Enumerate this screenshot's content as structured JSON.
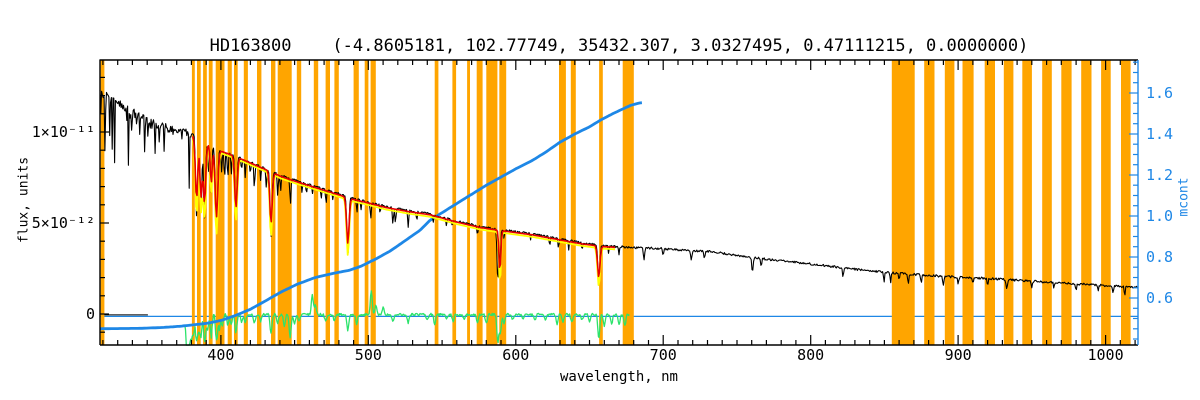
{
  "colors": {
    "background": "#ffffff",
    "frame": "#000000",
    "masked_band_orange": "#FFA500",
    "mcont_blue": "#1E87E6",
    "residual_green": "#2BE36B",
    "fit_red": "#E80000",
    "fit_yellow": "#FFFF00",
    "spectrum_black": "#000000"
  },
  "chart_data": {
    "type": "line",
    "title": "HD163800    (-4.8605181, 102.77749, 35432.307, 3.0327495, 0.47111215, 0.0000000)",
    "xlabel": "wavelength, nm",
    "ylabel_left": "flux, units",
    "ylabel_right": "mcont",
    "x_range_nm": [
      318,
      1022
    ],
    "x_major_ticks": [
      400,
      500,
      600,
      700,
      800,
      900,
      1000
    ],
    "x_minor_step_nm": 10,
    "flux_axis": {
      "range_e12": [
        -1.7,
        13.96
      ],
      "major_ticks": [
        {
          "value_e12": 0,
          "label": "0"
        },
        {
          "value_e12": 5,
          "label": "5×10⁻¹²"
        },
        {
          "value_e12": 10,
          "label": "1×10⁻¹¹"
        }
      ],
      "minor_step_e12": 1
    },
    "mcont_axis": {
      "range": [
        0.371,
        1.761
      ],
      "major_ticks": [
        0.6,
        0.8,
        1.0,
        1.2,
        1.4,
        1.6
      ],
      "minor_step": 0.05
    },
    "masked_bands_nm": [
      [
        318.5,
        321
      ],
      [
        380.3,
        382.3
      ],
      [
        383.8,
        386.3
      ],
      [
        387.9,
        390.4
      ],
      [
        391.8,
        394.4
      ],
      [
        396.5,
        402.5
      ],
      [
        404.6,
        407.4
      ],
      [
        408.9,
        411.4
      ],
      [
        415.5,
        418.3
      ],
      [
        424.5,
        427.5
      ],
      [
        434,
        437
      ],
      [
        438.5,
        448
      ],
      [
        451.5,
        454.5
      ],
      [
        463,
        466
      ],
      [
        471,
        474
      ],
      [
        477,
        480
      ],
      [
        490,
        493.5
      ],
      [
        497.5,
        500
      ],
      [
        501.5,
        505
      ],
      [
        545,
        547.5
      ],
      [
        557,
        559.5
      ],
      [
        567,
        569
      ],
      [
        573.5,
        577.5
      ],
      [
        580,
        587.5
      ],
      [
        588.8,
        593.5
      ],
      [
        629.3,
        634
      ],
      [
        637.3,
        640.7
      ],
      [
        656.5,
        659
      ],
      [
        672.5,
        680
      ],
      [
        855,
        870.5
      ],
      [
        877,
        884
      ],
      [
        891,
        897.5
      ],
      [
        903,
        910.5
      ],
      [
        918,
        925
      ],
      [
        931,
        937.5
      ],
      [
        943.5,
        950
      ],
      [
        957,
        963.5
      ],
      [
        970,
        977
      ],
      [
        983.5,
        990.5
      ],
      [
        997,
        1003.5
      ],
      [
        1010.5,
        1017
      ]
    ],
    "spectrum_continuum_e12": [
      [
        318,
        12.3
      ],
      [
        325,
        11.9
      ],
      [
        332,
        11.5
      ],
      [
        340,
        11.1
      ],
      [
        348,
        10.75
      ],
      [
        356,
        10.45
      ],
      [
        364,
        10.2
      ],
      [
        372,
        10.0
      ],
      [
        379,
        9.9
      ],
      [
        381,
        9.85
      ],
      [
        390,
        9.4
      ],
      [
        400,
        9.0
      ],
      [
        410,
        8.7
      ],
      [
        420,
        8.35
      ],
      [
        430,
        8.0
      ],
      [
        441,
        7.6
      ],
      [
        450,
        7.35
      ],
      [
        460,
        7.1
      ],
      [
        470,
        6.85
      ],
      [
        480,
        6.6
      ],
      [
        487,
        6.4
      ],
      [
        500,
        6.15
      ],
      [
        512,
        5.9
      ],
      [
        527,
        5.68
      ],
      [
        542,
        5.5
      ],
      [
        560,
        5.1
      ],
      [
        576,
        4.8
      ],
      [
        593,
        4.6
      ],
      [
        611,
        4.4
      ],
      [
        628,
        4.15
      ],
      [
        645,
        3.9
      ],
      [
        660,
        3.75
      ],
      [
        680,
        3.65
      ],
      [
        698,
        3.6
      ],
      [
        715,
        3.5
      ],
      [
        730,
        3.45
      ],
      [
        748,
        3.25
      ],
      [
        766,
        3.05
      ],
      [
        782,
        2.9
      ],
      [
        800,
        2.75
      ],
      [
        818,
        2.58
      ],
      [
        835,
        2.42
      ],
      [
        853,
        2.28
      ],
      [
        870,
        2.18
      ],
      [
        885,
        2.1
      ],
      [
        900,
        2.02
      ],
      [
        915,
        1.97
      ],
      [
        927,
        1.92
      ],
      [
        940,
        1.85
      ],
      [
        955,
        1.78
      ],
      [
        972,
        1.7
      ],
      [
        985,
        1.64
      ],
      [
        1000,
        1.56
      ],
      [
        1010,
        1.52
      ],
      [
        1022,
        1.46
      ]
    ],
    "absorption_lines": [
      [
        383.5,
        4.3,
        0.9
      ],
      [
        385.0,
        2.0,
        0.6
      ],
      [
        386.5,
        3.9,
        0.8
      ],
      [
        388.9,
        4.2,
        0.9
      ],
      [
        391.5,
        1.8,
        0.5
      ],
      [
        393.4,
        2.6,
        0.7
      ],
      [
        397.0,
        4.8,
        1.0
      ],
      [
        400.5,
        1.2,
        0.5
      ],
      [
        402.5,
        1.5,
        0.5
      ],
      [
        404.7,
        1.4,
        0.5
      ],
      [
        407.0,
        1.1,
        0.4
      ],
      [
        410.2,
        3.6,
        0.9
      ],
      [
        414.0,
        0.8,
        0.4
      ],
      [
        416.5,
        1.0,
        0.4
      ],
      [
        420.0,
        0.7,
        0.4
      ],
      [
        422.7,
        1.4,
        0.5
      ],
      [
        427.0,
        0.8,
        0.4
      ],
      [
        430.8,
        1.0,
        0.5
      ],
      [
        434.0,
        3.6,
        0.9
      ],
      [
        438.5,
        1.2,
        0.5
      ],
      [
        440.5,
        1.0,
        0.4
      ],
      [
        447.1,
        1.5,
        0.5
      ],
      [
        455.0,
        0.6,
        0.4
      ],
      [
        458.0,
        0.7,
        0.4
      ],
      [
        462.0,
        0.5,
        0.4
      ],
      [
        468.0,
        0.6,
        0.4
      ],
      [
        471.3,
        0.8,
        0.4
      ],
      [
        476.0,
        0.5,
        0.4
      ],
      [
        486.1,
        3.2,
        0.9
      ],
      [
        492.2,
        0.8,
        0.4
      ],
      [
        495.0,
        0.6,
        0.4
      ],
      [
        501.6,
        0.9,
        0.5
      ],
      [
        508.0,
        0.5,
        0.4
      ],
      [
        516.7,
        0.9,
        0.5
      ],
      [
        518.4,
        0.8,
        0.5
      ],
      [
        527.0,
        0.9,
        0.5
      ],
      [
        532.8,
        0.5,
        0.4
      ],
      [
        544.0,
        0.4,
        0.4
      ],
      [
        553.0,
        0.5,
        0.4
      ],
      [
        557.0,
        0.4,
        0.4
      ],
      [
        574.0,
        0.5,
        0.4
      ],
      [
        587.8,
        2.9,
        0.7
      ],
      [
        589.3,
        2.0,
        0.6
      ],
      [
        592.0,
        0.5,
        0.4
      ],
      [
        610.0,
        0.4,
        0.4
      ],
      [
        623.0,
        0.5,
        0.4
      ],
      [
        629.0,
        0.6,
        0.4
      ],
      [
        636.0,
        0.5,
        0.4
      ],
      [
        645.0,
        0.4,
        0.4
      ],
      [
        656.3,
        2.2,
        0.9
      ],
      [
        663.0,
        0.5,
        0.4
      ],
      [
        670.0,
        0.4,
        0.4
      ],
      [
        687.0,
        0.7,
        0.6
      ],
      [
        700.0,
        0.4,
        0.5
      ],
      [
        719.0,
        0.5,
        0.6
      ],
      [
        728.0,
        0.4,
        0.5
      ],
      [
        760.5,
        0.8,
        0.7
      ],
      [
        766.5,
        0.5,
        0.5
      ],
      [
        822.0,
        0.5,
        0.5
      ],
      [
        849.8,
        0.5,
        0.5
      ],
      [
        854.2,
        0.6,
        0.5
      ],
      [
        860.0,
        0.4,
        0.5
      ],
      [
        866.2,
        0.5,
        0.5
      ],
      [
        875.0,
        0.4,
        0.5
      ],
      [
        890.0,
        0.5,
        0.6
      ],
      [
        900.0,
        0.4,
        0.5
      ],
      [
        910.0,
        0.3,
        0.5
      ],
      [
        920.0,
        0.4,
        0.5
      ],
      [
        933.0,
        0.5,
        0.6
      ],
      [
        950.0,
        0.4,
        0.5
      ],
      [
        965.0,
        0.3,
        0.5
      ],
      [
        980.0,
        0.4,
        0.5
      ],
      [
        995.0,
        0.3,
        0.5
      ],
      [
        1005.0,
        0.4,
        0.5
      ],
      [
        1013.0,
        0.5,
        0.5
      ]
    ],
    "fit_range_nm": [
      381,
      668
    ],
    "fit_dips": [
      [
        383.5,
        4.3,
        0.9
      ],
      [
        386.5,
        3.9,
        0.8
      ],
      [
        388.9,
        4.2,
        0.9
      ],
      [
        393.4,
        2.6,
        0.7
      ],
      [
        397.0,
        4.8,
        1.0
      ],
      [
        410.2,
        3.6,
        0.9
      ],
      [
        434.0,
        3.6,
        0.9
      ],
      [
        486.1,
        3.2,
        0.9
      ],
      [
        589.2,
        2.9,
        0.7
      ],
      [
        656.3,
        2.2,
        0.9
      ]
    ],
    "mcont_curve": [
      [
        318,
        0.45
      ],
      [
        345,
        0.452
      ],
      [
        360,
        0.456
      ],
      [
        372,
        0.462
      ],
      [
        380,
        0.468
      ],
      [
        390,
        0.476
      ],
      [
        400,
        0.49
      ],
      [
        410,
        0.515
      ],
      [
        420,
        0.545
      ],
      [
        430,
        0.585
      ],
      [
        441,
        0.63
      ],
      [
        452,
        0.668
      ],
      [
        464,
        0.7
      ],
      [
        476,
        0.72
      ],
      [
        487,
        0.735
      ],
      [
        495,
        0.755
      ],
      [
        505,
        0.79
      ],
      [
        515,
        0.83
      ],
      [
        525,
        0.88
      ],
      [
        535,
        0.93
      ],
      [
        542,
        0.98
      ],
      [
        552,
        1.025
      ],
      [
        562,
        1.07
      ],
      [
        571,
        1.11
      ],
      [
        580,
        1.15
      ],
      [
        590,
        1.19
      ],
      [
        600,
        1.23
      ],
      [
        611,
        1.27
      ],
      [
        620,
        1.31
      ],
      [
        630,
        1.36
      ],
      [
        640,
        1.4
      ],
      [
        650,
        1.435
      ],
      [
        658,
        1.47
      ],
      [
        666,
        1.5
      ],
      [
        672,
        1.52
      ],
      [
        678,
        1.54
      ],
      [
        683,
        1.55
      ],
      [
        686,
        1.553
      ]
    ],
    "zero_line_mcont": 0.51,
    "zero_segment_black_nm": [
      320,
      350.5
    ],
    "residual_range_nm": [
      375.5,
      677
    ],
    "residual_spikes_e12": [
      [
        376.5,
        -1.3
      ],
      [
        377.5,
        -1.8
      ],
      [
        378.5,
        -1.5
      ],
      [
        380,
        -1.2
      ],
      [
        381.5,
        -1.0
      ],
      [
        383.5,
        -1.5
      ],
      [
        385,
        -0.9
      ],
      [
        386.5,
        -1.2
      ],
      [
        389,
        -1.6
      ],
      [
        391,
        -0.8
      ],
      [
        393.4,
        -1.2
      ],
      [
        397,
        -1.5
      ],
      [
        399,
        -0.8
      ],
      [
        401,
        -0.6
      ],
      [
        404.7,
        -0.55
      ],
      [
        407,
        -0.5
      ],
      [
        410.2,
        -1.0
      ],
      [
        414,
        -0.4
      ],
      [
        416.5,
        -0.45
      ],
      [
        422.7,
        -0.5
      ],
      [
        427,
        -0.35
      ],
      [
        434,
        -1.05
      ],
      [
        438.5,
        -0.5
      ],
      [
        443,
        -0.6
      ],
      [
        447,
        -1.3
      ],
      [
        450,
        -0.5
      ],
      [
        453,
        -0.4
      ],
      [
        462,
        1.1
      ],
      [
        464,
        0.5
      ],
      [
        471,
        -0.4
      ],
      [
        477,
        -0.35
      ],
      [
        486.1,
        -0.9
      ],
      [
        492,
        -0.5
      ],
      [
        502,
        1.35
      ],
      [
        505,
        0.5
      ],
      [
        510,
        0.4
      ],
      [
        516.7,
        -0.4
      ],
      [
        527,
        -0.45
      ],
      [
        540,
        -0.3
      ],
      [
        545,
        -0.5
      ],
      [
        553,
        -0.3
      ],
      [
        557.5,
        -0.35
      ],
      [
        565,
        -0.3
      ],
      [
        574,
        -0.4
      ],
      [
        580,
        -0.5
      ],
      [
        587.8,
        -1.6
      ],
      [
        589.5,
        -1.0
      ],
      [
        592,
        -0.5
      ],
      [
        598,
        -0.3
      ],
      [
        605,
        -0.3
      ],
      [
        613,
        -0.35
      ],
      [
        620,
        -0.3
      ],
      [
        628,
        -0.5
      ],
      [
        632,
        -0.4
      ],
      [
        638,
        -0.45
      ],
      [
        645,
        -0.3
      ],
      [
        650,
        -0.4
      ],
      [
        656.3,
        -1.3
      ],
      [
        660,
        -0.6
      ],
      [
        665,
        -0.5
      ],
      [
        670,
        -0.55
      ],
      [
        674,
        -0.6
      ]
    ]
  }
}
